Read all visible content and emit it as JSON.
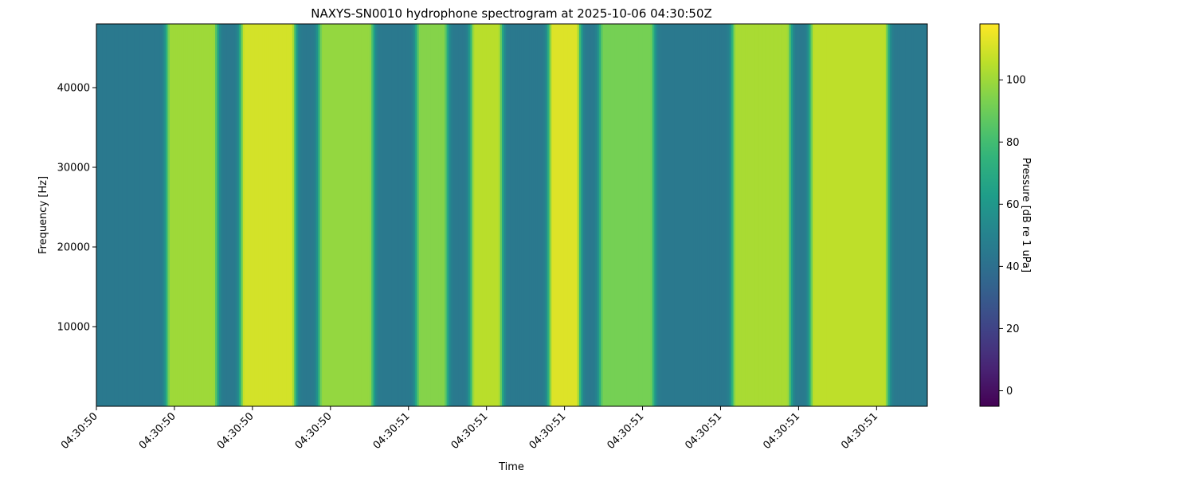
{
  "chart_data": {
    "type": "heatmap",
    "title": "NAXYS-SN0010 hydrophone spectrogram at 2025-10-06 04:30:50Z",
    "xlabel": "Time",
    "ylabel": "Frequency [Hz]",
    "colorbar_label": "Pressure [dB re 1 uPa]",
    "colormap": "viridis",
    "colormap_stops": [
      "#440154",
      "#482878",
      "#3e4989",
      "#31688e",
      "#26828e",
      "#1f9e89",
      "#35b779",
      "#6ece58",
      "#b5de2b",
      "#fde725"
    ],
    "color_range": [
      -5,
      118
    ],
    "colorbar_ticks": [
      0,
      20,
      40,
      60,
      80,
      100
    ],
    "x_range": [
      0,
      10.65
    ],
    "y_range": [
      0,
      48000
    ],
    "x_tick_positions": [
      0,
      1,
      2,
      3,
      4,
      5,
      6,
      7,
      8,
      9,
      10
    ],
    "x_tick_labels": [
      "04:30:50",
      "04:30:50",
      "04:30:50",
      "04:30:50",
      "04:30:51",
      "04:30:51",
      "04:30:51",
      "04:30:51",
      "04:30:51",
      "04:30:51",
      "04:30:51"
    ],
    "y_ticks": [
      10000,
      20000,
      30000,
      40000
    ],
    "background_level_db": 45,
    "high_energy_bands": [
      {
        "start": 0.95,
        "end": 1.5,
        "peak_db": 100
      },
      {
        "start": 1.9,
        "end": 2.5,
        "peak_db": 110
      },
      {
        "start": 2.9,
        "end": 3.5,
        "peak_db": 98
      },
      {
        "start": 4.15,
        "end": 4.45,
        "peak_db": 95
      },
      {
        "start": 4.85,
        "end": 5.15,
        "peak_db": 105
      },
      {
        "start": 5.85,
        "end": 6.15,
        "peak_db": 112
      },
      {
        "start": 6.5,
        "end": 7.1,
        "peak_db": 92
      },
      {
        "start": 8.2,
        "end": 8.85,
        "peak_db": 102
      },
      {
        "start": 9.2,
        "end": 10.1,
        "peak_db": 106
      }
    ]
  }
}
